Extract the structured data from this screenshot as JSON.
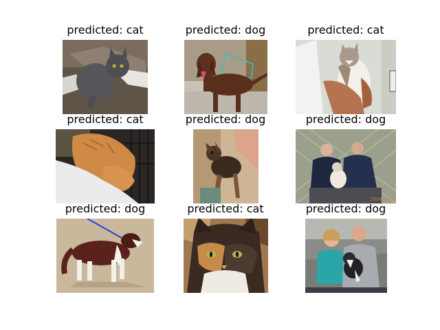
{
  "panels": [
    {
      "title": "predicted: cat"
    },
    {
      "title": "predicted: dog"
    },
    {
      "title": "predicted: cat"
    },
    {
      "title": "predicted: cat"
    },
    {
      "title": "predicted: dog"
    },
    {
      "title": "predicted: dog"
    },
    {
      "title": "predicted: dog"
    },
    {
      "title": "predicted: cat"
    },
    {
      "title": "predicted: dog"
    }
  ],
  "watermark": "2004.12.05"
}
